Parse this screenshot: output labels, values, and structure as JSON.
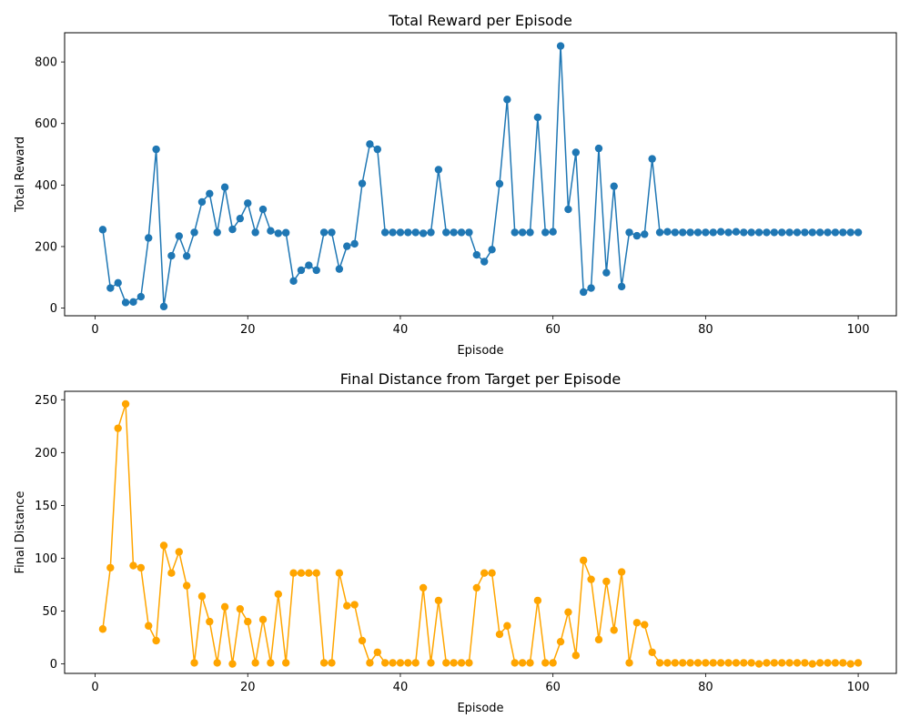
{
  "chart_data": [
    {
      "type": "line",
      "title": "Total Reward per Episode",
      "xlabel": "Episode",
      "ylabel": "Total Reward",
      "xlim": [
        -4,
        105
      ],
      "ylim": [
        -25,
        895
      ],
      "xticks": [
        0,
        20,
        40,
        60,
        80,
        100
      ],
      "yticks": [
        0,
        200,
        400,
        600,
        800
      ],
      "grid": false,
      "color": "#1f77b4",
      "marker": "circle",
      "series": [
        {
          "x": [
            1,
            2,
            3,
            4,
            5,
            6,
            7,
            8,
            9,
            10,
            11,
            12,
            13,
            14,
            15,
            16,
            17,
            18,
            19,
            20,
            21,
            22,
            23,
            24,
            25,
            26,
            27,
            28,
            29,
            30,
            31,
            32,
            33,
            34,
            35,
            36,
            37,
            38,
            39,
            40,
            41,
            42,
            43,
            44,
            45,
            46,
            47,
            48,
            49,
            50,
            51,
            52,
            53,
            54,
            55,
            56,
            57,
            58,
            59,
            60,
            61,
            62,
            63,
            64,
            65,
            66,
            67,
            68,
            69,
            70,
            71,
            72,
            73,
            74,
            75,
            76,
            77,
            78,
            79,
            80,
            81,
            82,
            83,
            84,
            85,
            86,
            87,
            88,
            89,
            90,
            91,
            92,
            93,
            94,
            95,
            96,
            97,
            98,
            99,
            100
          ],
          "values": [
            255,
            65,
            82,
            18,
            20,
            37,
            228,
            516,
            5,
            170,
            234,
            169,
            246,
            345,
            372,
            246,
            393,
            256,
            291,
            341,
            246,
            321,
            251,
            243,
            245,
            88,
            123,
            139,
            123,
            246,
            246,
            127,
            201,
            209,
            405,
            533,
            516,
            246,
            246,
            246,
            246,
            246,
            243,
            246,
            450,
            246,
            246,
            246,
            246,
            173,
            151,
            190,
            404,
            678,
            246,
            246,
            246,
            620,
            246,
            248,
            852,
            321,
            506,
            52,
            65,
            519,
            115,
            396,
            70,
            246,
            235,
            240,
            485,
            246,
            248,
            246,
            246,
            246,
            246,
            246,
            246,
            248,
            246,
            248,
            246,
            246,
            246,
            246,
            246,
            246,
            246,
            246,
            246,
            246,
            246,
            246,
            246,
            246,
            246,
            246
          ]
        }
      ]
    },
    {
      "type": "line",
      "title": "Final Distance from Target per Episode",
      "xlabel": "Episode",
      "ylabel": "Final Distance",
      "xlim": [
        -4,
        105
      ],
      "ylim": [
        -9,
        258
      ],
      "xticks": [
        0,
        20,
        40,
        60,
        80,
        100
      ],
      "yticks": [
        0,
        50,
        100,
        150,
        200,
        250
      ],
      "grid": false,
      "color": "#ffa500",
      "marker": "circle",
      "series": [
        {
          "x": [
            1,
            2,
            3,
            4,
            5,
            6,
            7,
            8,
            9,
            10,
            11,
            12,
            13,
            14,
            15,
            16,
            17,
            18,
            19,
            20,
            21,
            22,
            23,
            24,
            25,
            26,
            27,
            28,
            29,
            30,
            31,
            32,
            33,
            34,
            35,
            36,
            37,
            38,
            39,
            40,
            41,
            42,
            43,
            44,
            45,
            46,
            47,
            48,
            49,
            50,
            51,
            52,
            53,
            54,
            55,
            56,
            57,
            58,
            59,
            60,
            61,
            62,
            63,
            64,
            65,
            66,
            67,
            68,
            69,
            70,
            71,
            72,
            73,
            74,
            75,
            76,
            77,
            78,
            79,
            80,
            81,
            82,
            83,
            84,
            85,
            86,
            87,
            88,
            89,
            90,
            91,
            92,
            93,
            94,
            95,
            96,
            97,
            98,
            99,
            100
          ],
          "values": [
            33,
            91,
            223,
            246,
            93,
            91,
            36,
            22,
            112,
            86,
            106,
            74,
            1,
            64,
            40,
            1,
            54,
            0,
            52,
            40,
            1,
            42,
            1,
            66,
            1,
            86,
            86,
            86,
            86,
            1,
            1,
            86,
            55,
            56,
            22,
            1,
            11,
            1,
            1,
            1,
            1,
            1,
            72,
            1,
            60,
            1,
            1,
            1,
            1,
            72,
            86,
            86,
            28,
            36,
            1,
            1,
            1,
            60,
            1,
            1,
            21,
            49,
            8,
            98,
            80,
            23,
            78,
            32,
            87,
            1,
            39,
            37,
            11,
            1,
            1,
            1,
            1,
            1,
            1,
            1,
            1,
            1,
            1,
            1,
            1,
            1,
            0,
            1,
            1,
            1,
            1,
            1,
            1,
            0,
            1,
            1,
            1,
            1,
            0,
            1
          ]
        }
      ]
    }
  ]
}
